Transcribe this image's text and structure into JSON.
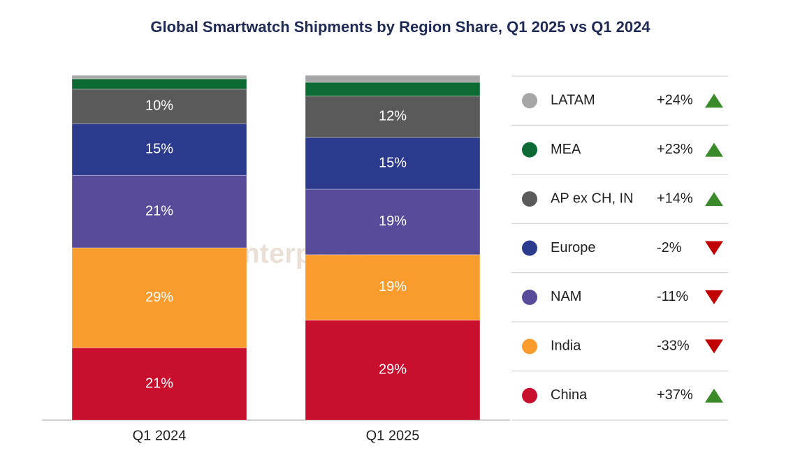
{
  "chart_data": {
    "type": "stacked-bar",
    "title": "Global Smartwatch Shipments by Region Share, Q1 2025 vs Q1 2024",
    "watermark": "Counterpoint",
    "categories": [
      "Q1 2024",
      "Q1 2025"
    ],
    "ylim": [
      0,
      100
    ],
    "series": [
      {
        "name": "China",
        "color": "#c8102e",
        "values": [
          21,
          29
        ],
        "value_labels": [
          "21%",
          "29%"
        ],
        "yoy_change": {
          "value": 37,
          "label": "+37%"
        }
      },
      {
        "name": "India",
        "color": "#f99b2d",
        "values": [
          29,
          19
        ],
        "value_labels": [
          "29%",
          "19%"
        ],
        "yoy_change": {
          "value": -33,
          "label": "-33%"
        }
      },
      {
        "name": "NAM",
        "color": "#574b9a",
        "values": [
          21,
          19
        ],
        "value_labels": [
          "21%",
          "19%"
        ],
        "yoy_change": {
          "value": -11,
          "label": "-11%"
        }
      },
      {
        "name": "Europe",
        "color": "#2b3a8c",
        "values": [
          15,
          15
        ],
        "value_labels": [
          "15%",
          "15%"
        ],
        "yoy_change": {
          "value": -2,
          "label": "-2%"
        }
      },
      {
        "name": "AP ex CH, IN",
        "color": "#5a5a5a",
        "values": [
          10,
          12
        ],
        "value_labels": [
          "10%",
          "12%"
        ],
        "yoy_change": {
          "value": 14,
          "label": "+14%"
        }
      },
      {
        "name": "MEA",
        "color": "#0b6b33",
        "values": [
          3,
          4
        ],
        "value_labels": [
          null,
          null
        ],
        "yoy_change": {
          "value": 23,
          "label": "+23%"
        }
      },
      {
        "name": "LATAM",
        "color": "#a6a6a6",
        "values": [
          1,
          2
        ],
        "value_labels": [
          null,
          null
        ],
        "yoy_change": {
          "value": 24,
          "label": "+24%"
        }
      }
    ],
    "up_color": "#3b8a2a",
    "down_color": "#c00000"
  }
}
